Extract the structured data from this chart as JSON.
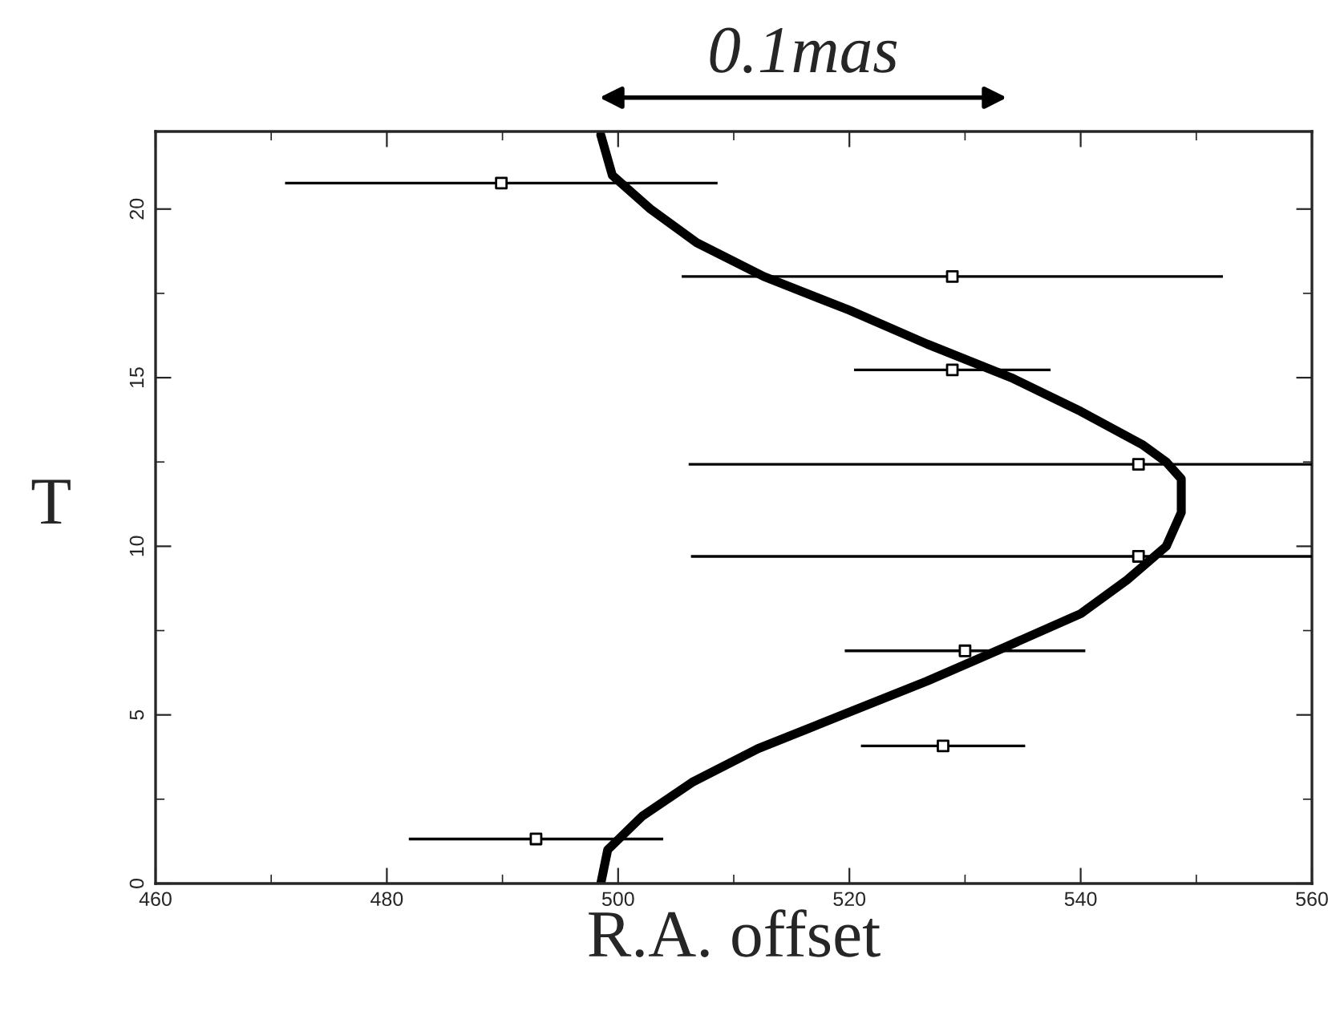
{
  "chart_data": {
    "type": "scatter",
    "xlabel": "R.A. offset",
    "ylabel": "T",
    "annotations": [
      "0.1mas"
    ],
    "xlim": [
      460,
      560
    ],
    "xticks": [
      460,
      480,
      500,
      520,
      540,
      560
    ],
    "ylim": [
      0,
      22.3
    ],
    "yticks": [
      0,
      5,
      10,
      15,
      20
    ],
    "grid": false,
    "legend": false,
    "series": [
      {
        "type": "line",
        "color": "#000000",
        "marker": "none",
        "line_style": "solid",
        "x": [
          498.5,
          499.1,
          502.1,
          506.4,
          512.1,
          519.4,
          526.7,
          533.4,
          540,
          544,
          547.4,
          548.7,
          548.7,
          547.4,
          545.4,
          540,
          534,
          526.7,
          520,
          512.6,
          506.8,
          502.8,
          499.5,
          498.5
        ],
        "values": [
          0,
          1,
          2,
          3,
          4,
          5,
          6,
          7,
          8,
          9,
          10,
          11,
          12,
          12.5,
          13,
          14,
          15,
          16,
          17,
          18,
          19,
          20,
          21,
          22.2
        ]
      },
      {
        "color": "#000000",
        "marker": "square",
        "x": [
          492.9,
          528.1,
          530,
          545,
          545,
          528.9,
          528.9,
          489.9
        ],
        "values": [
          1.32,
          4.08,
          6.9,
          9.7,
          12.43,
          15.23,
          18.0,
          20.77
        ],
        "xerrors": [
          11,
          7.1,
          10.4,
          [
            506.3,
            560
          ],
          [
            506.1,
            560
          ],
          8.5,
          23.4,
          18.7
        ]
      }
    ]
  }
}
